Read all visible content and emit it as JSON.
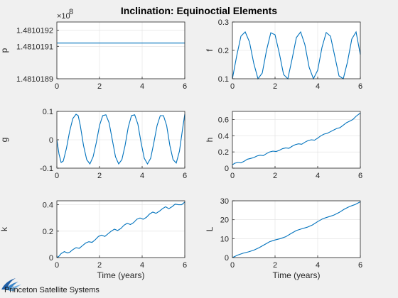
{
  "figure": {
    "title": "Inclination: Equinoctial Elements"
  },
  "logo": {
    "text": "Princeton Satellite Systems"
  },
  "colors": {
    "series": "#0072bd",
    "background": "#f0f0f0",
    "plot_background": "#ffffff",
    "grid": "#dfdfdf"
  },
  "chart_data": [
    {
      "type": "line",
      "id": "p",
      "ylabel": "p",
      "xlabel": "",
      "xlim": [
        0,
        6
      ],
      "xticks": [
        0,
        2,
        4,
        6
      ],
      "xticklabels": [
        "0",
        "2",
        "4",
        "6"
      ],
      "ylim": [
        1.4810189,
        1.48101925
      ],
      "yticks": [
        1.4810189,
        1.4810191,
        1.4810192
      ],
      "yticklabels": [
        "1.4810189",
        "1.4810191",
        "1.4810192"
      ],
      "y_exponent_label": "×10",
      "y_exponent_power": "8",
      "grid": true,
      "x": [
        0,
        6
      ],
      "y": [
        1.48101912,
        1.48101912
      ]
    },
    {
      "type": "line",
      "id": "f",
      "ylabel": "f",
      "xlabel": "",
      "xlim": [
        0,
        6
      ],
      "xticks": [
        0,
        2,
        4,
        6
      ],
      "xticklabels": [
        "0",
        "2",
        "4",
        "6"
      ],
      "ylim": [
        0.1,
        0.3
      ],
      "yticks": [
        0.1,
        0.2,
        0.3
      ],
      "yticklabels": [
        "0.1",
        "0.2",
        "0.3"
      ],
      "grid": true,
      "x": [
        0,
        0.2,
        0.4,
        0.6,
        0.8,
        1.0,
        1.2,
        1.4,
        1.6,
        1.8,
        2.0,
        2.2,
        2.4,
        2.6,
        2.8,
        3.0,
        3.2,
        3.4,
        3.6,
        3.8,
        4.0,
        4.2,
        4.4,
        4.6,
        4.8,
        5.0,
        5.2,
        5.4,
        5.6,
        5.8,
        6.0
      ],
      "y": [
        0.1,
        0.18,
        0.25,
        0.265,
        0.23,
        0.155,
        0.1,
        0.12,
        0.2,
        0.262,
        0.255,
        0.19,
        0.115,
        0.1,
        0.17,
        0.245,
        0.265,
        0.22,
        0.14,
        0.1,
        0.13,
        0.21,
        0.263,
        0.25,
        0.18,
        0.11,
        0.1,
        0.16,
        0.24,
        0.265,
        0.185
      ]
    },
    {
      "type": "line",
      "id": "g",
      "ylabel": "g",
      "xlabel": "",
      "xlim": [
        0,
        6
      ],
      "xticks": [
        0,
        2,
        4,
        6
      ],
      "xticklabels": [
        "0",
        "2",
        "4",
        "6"
      ],
      "ylim": [
        -0.1,
        0.1
      ],
      "yticks": [
        -0.1,
        0,
        0.1
      ],
      "yticklabels": [
        "-0.1",
        "0",
        "0.1"
      ],
      "grid": true,
      "x": [
        0,
        0.1,
        0.2,
        0.3,
        0.45,
        0.6,
        0.75,
        0.9,
        1.0,
        1.1,
        1.25,
        1.4,
        1.55,
        1.7,
        1.85,
        2.0,
        2.15,
        2.3,
        2.45,
        2.6,
        2.75,
        2.9,
        3.05,
        3.2,
        3.35,
        3.5,
        3.65,
        3.8,
        3.95,
        4.1,
        4.25,
        4.4,
        4.55,
        4.7,
        4.85,
        5.0,
        5.15,
        5.3,
        5.45,
        5.6,
        5.75,
        5.9,
        6.0
      ],
      "y": [
        0,
        -0.05,
        -0.08,
        -0.075,
        -0.03,
        0.03,
        0.075,
        0.09,
        0.085,
        0.05,
        -0.02,
        -0.07,
        -0.085,
        -0.06,
        -0.01,
        0.05,
        0.085,
        0.088,
        0.06,
        0.0,
        -0.06,
        -0.085,
        -0.07,
        -0.02,
        0.045,
        0.085,
        0.088,
        0.055,
        -0.01,
        -0.065,
        -0.085,
        -0.065,
        -0.01,
        0.05,
        0.085,
        0.085,
        0.05,
        -0.02,
        -0.07,
        -0.082,
        -0.04,
        0.04,
        0.09
      ]
    },
    {
      "type": "line",
      "id": "h",
      "ylabel": "h",
      "xlabel": "",
      "xlim": [
        0,
        6
      ],
      "xticks": [
        0,
        2,
        4,
        6
      ],
      "xticklabels": [
        "0",
        "2",
        "4",
        "6"
      ],
      "ylim": [
        0,
        0.7
      ],
      "yticks": [
        0,
        0.2,
        0.4,
        0.6
      ],
      "yticklabels": [
        "0",
        "0.2",
        "0.4",
        "0.6"
      ],
      "grid": true,
      "x": [
        0,
        0.1,
        0.25,
        0.4,
        0.55,
        0.7,
        0.85,
        1.0,
        1.15,
        1.3,
        1.45,
        1.6,
        1.75,
        1.9,
        2.05,
        2.2,
        2.35,
        2.5,
        2.65,
        2.8,
        2.95,
        3.1,
        3.25,
        3.4,
        3.55,
        3.7,
        3.85,
        4.0,
        4.15,
        4.3,
        4.45,
        4.6,
        4.75,
        4.9,
        5.05,
        5.2,
        5.35,
        5.5,
        5.65,
        5.8,
        6.0
      ],
      "y": [
        0.04,
        0.06,
        0.07,
        0.065,
        0.085,
        0.11,
        0.12,
        0.13,
        0.15,
        0.16,
        0.155,
        0.18,
        0.2,
        0.21,
        0.205,
        0.22,
        0.24,
        0.25,
        0.245,
        0.27,
        0.29,
        0.3,
        0.295,
        0.32,
        0.34,
        0.35,
        0.345,
        0.37,
        0.4,
        0.42,
        0.43,
        0.45,
        0.47,
        0.49,
        0.5,
        0.53,
        0.56,
        0.58,
        0.6,
        0.64,
        0.68
      ]
    },
    {
      "type": "line",
      "id": "k",
      "ylabel": "k",
      "xlabel": "Time (years)",
      "xlim": [
        0,
        6
      ],
      "xticks": [
        0,
        2,
        4,
        6
      ],
      "xticklabels": [
        "0",
        "2",
        "4",
        "6"
      ],
      "ylim": [
        0,
        0.43
      ],
      "yticks": [
        0,
        0.2,
        0.4
      ],
      "yticklabels": [
        "0",
        "0.2",
        "0.4"
      ],
      "grid": true,
      "x": [
        0,
        0.1,
        0.2,
        0.35,
        0.5,
        0.6,
        0.75,
        0.9,
        1.05,
        1.2,
        1.35,
        1.5,
        1.65,
        1.8,
        1.95,
        2.1,
        2.25,
        2.4,
        2.55,
        2.7,
        2.85,
        3.0,
        3.15,
        3.3,
        3.45,
        3.6,
        3.75,
        3.9,
        4.05,
        4.2,
        4.35,
        4.5,
        4.65,
        4.8,
        4.95,
        5.1,
        5.25,
        5.4,
        5.55,
        5.7,
        5.85,
        6.0
      ],
      "y": [
        0.0,
        0.01,
        0.03,
        0.045,
        0.035,
        0.04,
        0.06,
        0.075,
        0.07,
        0.09,
        0.11,
        0.12,
        0.115,
        0.135,
        0.16,
        0.17,
        0.16,
        0.18,
        0.2,
        0.215,
        0.205,
        0.22,
        0.245,
        0.26,
        0.25,
        0.265,
        0.29,
        0.3,
        0.29,
        0.305,
        0.33,
        0.345,
        0.335,
        0.35,
        0.37,
        0.385,
        0.37,
        0.385,
        0.405,
        0.4,
        0.4,
        0.42
      ]
    },
    {
      "type": "line",
      "id": "L",
      "ylabel": "L",
      "xlabel": "Time (years)",
      "xlim": [
        0,
        6
      ],
      "xticks": [
        0,
        2,
        4,
        6
      ],
      "xticklabels": [
        "0",
        "2",
        "4",
        "6"
      ],
      "ylim": [
        0,
        30
      ],
      "yticks": [
        0,
        10,
        20,
        30
      ],
      "yticklabels": [
        "0",
        "10",
        "20",
        "30"
      ],
      "grid": true,
      "x": [
        0,
        0.25,
        0.5,
        0.75,
        1.0,
        1.25,
        1.5,
        1.75,
        2.0,
        2.25,
        2.5,
        2.75,
        3.0,
        3.25,
        3.5,
        3.75,
        4.0,
        4.25,
        4.5,
        4.75,
        5.0,
        5.25,
        5.5,
        5.75,
        6.0
      ],
      "y": [
        0,
        1.3,
        2.3,
        3.0,
        3.9,
        5.2,
        6.8,
        8.4,
        9.3,
        10.0,
        11.0,
        12.7,
        14.3,
        15.2,
        16.0,
        17.2,
        19.0,
        20.6,
        21.5,
        22.4,
        23.8,
        25.6,
        27.0,
        28.0,
        29.5
      ]
    }
  ]
}
